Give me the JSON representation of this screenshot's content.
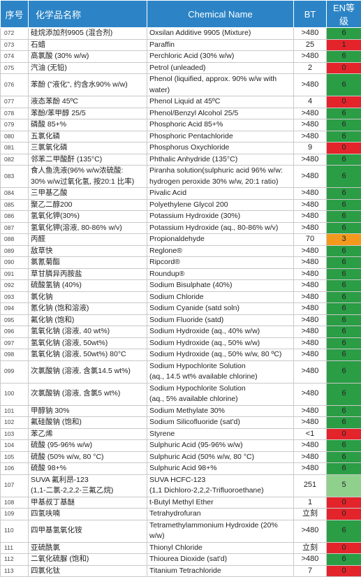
{
  "table": {
    "header": [
      "序号",
      "化学品名称",
      "Chemical Name",
      "BT",
      "EN等级"
    ],
    "rows": [
      [
        "072",
        "硅烷添加剂9905 (混合剂)",
        "Oxsilan Additive 9905 (Mixture)",
        ">480",
        "6",
        "#2a9d45"
      ],
      [
        "073",
        "石蜡",
        "Paraffin",
        "25",
        "1",
        "#e3242b"
      ],
      [
        "074",
        "高氯酸 (30% w/w)",
        "Perchloric Acid (30% w/w)",
        ">480",
        "6",
        "#2a9d45"
      ],
      [
        "075",
        "汽油 (无铅)",
        "Petrol (unleaded)",
        "2",
        "0",
        "#e3242b"
      ],
      [
        "076",
        "苯酚 (\"液化\", 约含水90% w/w)",
        "Phenol (liquified, approx. 90% w/w with water)",
        ">480",
        "6",
        "#2a9d45"
      ],
      [
        "077",
        "液态苯酚 45ºC",
        "Phenol Liquid at 45ºC",
        "4",
        "0",
        "#e3242b"
      ],
      [
        "078",
        "苯酚/苯甲醇 25/5",
        "Phenol/Benzyl Alcohol 25/5",
        ">480",
        "6",
        "#2a9d45"
      ],
      [
        "079",
        "磷酸 85+%",
        "Phosphoric Acid 85+%",
        ">480",
        "6",
        "#2a9d45"
      ],
      [
        "080",
        "五氯化磷",
        "Phosphoric Pentachloride",
        ">480",
        "6",
        "#2a9d45"
      ],
      [
        "081",
        "三氯氧化磷",
        "Phosphorus Oxychloride",
        "9",
        "0",
        "#e3242b"
      ],
      [
        "082",
        "邻苯二甲酸酐 (135°C)",
        "Phthalic Anhydride (135°C)",
        ">480",
        "6",
        "#2a9d45"
      ],
      [
        "083",
        "食人鱼洗液(96% w/w浓硫酸:\n30% w/w过氧化氢, 按20:1 比率)",
        "Piranha solution(sulphuric acid 96% w/w:\nhydrogen peroxide 30% w/w, 20:1 ratio)",
        ">480",
        "6",
        "#2a9d45"
      ],
      [
        "084",
        "三甲基乙酸",
        "Pivalic Acid",
        ">480",
        "6",
        "#2a9d45"
      ],
      [
        "085",
        "聚乙二醇200",
        "Polyethylene Glycol 200",
        ">480",
        "6",
        "#2a9d45"
      ],
      [
        "086",
        "氢氧化钾(30%)",
        "Potassium Hydroxide (30%)",
        ">480",
        "6",
        "#2a9d45"
      ],
      [
        "087",
        "氢氧化钾(溶液, 80-86% w/v)",
        "Potassium Hydroxide (aq., 80-86% w/v)",
        ">480",
        "6",
        "#2a9d45"
      ],
      [
        "088",
        "丙醛",
        "Propionaldehyde",
        "70",
        "3",
        "#f39a1e"
      ],
      [
        "089",
        "敌草快",
        "Reglone®",
        ">480",
        "6",
        "#2a9d45"
      ],
      [
        "090",
        "氯氰菊酯",
        "Ripcord®",
        ">480",
        "6",
        "#2a9d45"
      ],
      [
        "091",
        "草甘膦异丙胺盐",
        "Roundup®",
        ">480",
        "6",
        "#2a9d45"
      ],
      [
        "092",
        "硫酸氢钠 (40%)",
        "Sodium Bisulphate (40%)",
        ">480",
        "6",
        "#2a9d45"
      ],
      [
        "093",
        "氯化钠",
        "Sodium Chloride",
        ">480",
        "6",
        "#2a9d45"
      ],
      [
        "094",
        "氰化钠 (饱和溶液)",
        "Sodium Cyanide (satd soln)",
        ">480",
        "6",
        "#2a9d45"
      ],
      [
        "095",
        "氟化钠 (饱和)",
        "Sodium Fluoride (satd)",
        ">480",
        "6",
        "#2a9d45"
      ],
      [
        "096",
        "氢氧化钠 (溶液, 40 wt%)",
        "Sodium Hydroxide (aq., 40% w/w)",
        ">480",
        "6",
        "#2a9d45"
      ],
      [
        "097",
        "氢氧化钠 (溶液, 50wt%)",
        "Sodium Hydroxide (aq., 50% w/w)",
        ">480",
        "6",
        "#2a9d45"
      ],
      [
        "098",
        "氢氧化钠 (溶液, 50wt%) 80°C",
        "Sodium Hydroxide (aq., 50% w/w, 80 ºC)",
        ">480",
        "6",
        "#2a9d45"
      ],
      [
        "099",
        "次氯酸钠 (溶液, 含氯14.5 wt%)",
        "Sodium Hypochlorite Solution\n(aq., 14.5 wt% available chlorine)",
        ">480",
        "6",
        "#2a9d45"
      ],
      [
        "100",
        "次氯酸钠 (溶液, 含氯5 wt%)",
        "Sodium Hypochlorite Solution\n(aq., 5% available chlorine)",
        ">480",
        "6",
        "#2a9d45"
      ],
      [
        "101",
        "甲醇钠 30%",
        "Sodium Methylate 30%",
        ">480",
        "6",
        "#2a9d45"
      ],
      [
        "102",
        "氟硅酸钠 (饱和)",
        "Sodium Silicofluoride (sat'd)",
        ">480",
        "6",
        "#2a9d45"
      ],
      [
        "103",
        "苯乙烯",
        "Styrene",
        "<1",
        "0",
        "#e3242b"
      ],
      [
        "104",
        "硫酸 (95-96% w/w)",
        "Sulphuric Acid (95-96% w/w)",
        ">480",
        "6",
        "#2a9d45"
      ],
      [
        "105",
        "硫酸 (50% w/w, 80 °C)",
        "Sulphuric Acid (50% w/w, 80 °C)",
        ">480",
        "6",
        "#2a9d45"
      ],
      [
        "106",
        "硫酸 98+%",
        "Sulphuric Acid 98+%",
        ">480",
        "6",
        "#2a9d45"
      ],
      [
        "107",
        "SUVA 氟利昂-123\n(1,1-二氯-2,2,2-三氟乙烷)",
        "SUVA HCFC-123\n(1,1 Dichloro-2,2,2-Trifluoroethane)",
        "251",
        "5",
        "#8fd08c"
      ],
      [
        "108",
        "甲基叔丁基醚",
        "t-Butyl Methyl Ether",
        "1",
        "0",
        "#e3242b"
      ],
      [
        "109",
        "四氢呋喃",
        "Tetrahydrofuran",
        "立刻",
        "0",
        "#e3242b"
      ],
      [
        "110",
        "四甲基氢氧化铵",
        "Tetramethylammonium Hydroxide (20% w/w)",
        ">480",
        "6",
        "#2a9d45"
      ],
      [
        "111",
        "亚硫酰氯",
        "Thionyl Chloride",
        "立刻",
        "0",
        "#e3242b"
      ],
      [
        "112",
        "二氧化硫脲 (饱和)",
        "Thiourea Dioxide (sat'd)",
        ">480",
        "6",
        "#2a9d45"
      ],
      [
        "113",
        "四氯化钛",
        "Titanium Tetrachloride",
        "7",
        "0",
        "#e3242b"
      ]
    ]
  }
}
